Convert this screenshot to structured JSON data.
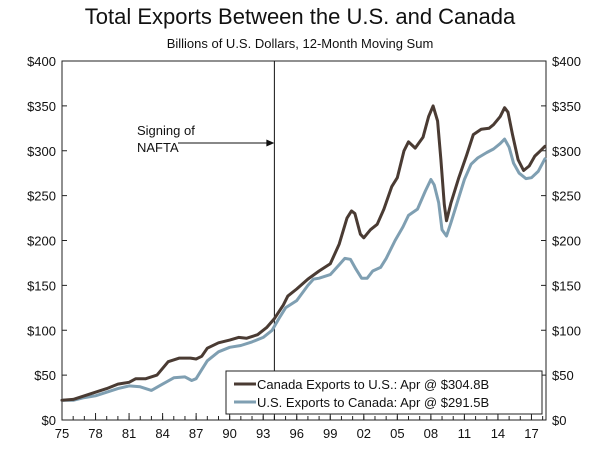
{
  "chart_data": {
    "type": "line",
    "title": "Total Exports Between the U.S. and Canada",
    "subtitle": "Billions of U.S. Dollars, 12-Month Moving Sum",
    "xlabel": "",
    "ylabel": "",
    "xlim": [
      1975,
      2018.3
    ],
    "ylim": [
      0,
      400
    ],
    "x_ticks": [
      1975,
      1978,
      1981,
      1984,
      1987,
      1990,
      1993,
      1996,
      1999,
      2002,
      2005,
      2008,
      2011,
      2014,
      2017
    ],
    "x_tick_labels": [
      "75",
      "78",
      "81",
      "84",
      "87",
      "90",
      "93",
      "96",
      "99",
      "02",
      "05",
      "08",
      "11",
      "14",
      "17"
    ],
    "y_ticks": [
      0,
      50,
      100,
      150,
      200,
      250,
      300,
      350,
      400
    ],
    "y_tick_labels": [
      "$0",
      "$50",
      "$100",
      "$150",
      "$200",
      "$250",
      "$300",
      "$350",
      "$400"
    ],
    "grid": false,
    "legend_position": "bottom-right",
    "annotation": {
      "text_lines": [
        "Signing of",
        "NAFTA"
      ],
      "x": 1994.0
    },
    "series": [
      {
        "name": "Canada Exports to U.S.: Apr @ $304.8B",
        "color": "#4a3b33",
        "points": [
          [
            1975.0,
            22
          ],
          [
            1976.0,
            23
          ],
          [
            1977.0,
            27
          ],
          [
            1978.0,
            31
          ],
          [
            1979.0,
            35
          ],
          [
            1980.0,
            40
          ],
          [
            1981.0,
            42
          ],
          [
            1981.6,
            46
          ],
          [
            1982.5,
            46
          ],
          [
            1983.5,
            50
          ],
          [
            1984.5,
            65
          ],
          [
            1985.5,
            69
          ],
          [
            1986.5,
            69
          ],
          [
            1987.0,
            68
          ],
          [
            1987.5,
            71
          ],
          [
            1988.0,
            80
          ],
          [
            1989.0,
            86
          ],
          [
            1990.0,
            89
          ],
          [
            1990.8,
            92
          ],
          [
            1991.5,
            91
          ],
          [
            1992.5,
            95
          ],
          [
            1993.3,
            103
          ],
          [
            1994.0,
            113
          ],
          [
            1994.8,
            128
          ],
          [
            1995.2,
            138
          ],
          [
            1996.0,
            146
          ],
          [
            1997.0,
            157
          ],
          [
            1998.0,
            166
          ],
          [
            1999.0,
            174
          ],
          [
            1999.8,
            196
          ],
          [
            2000.5,
            225
          ],
          [
            2000.9,
            233
          ],
          [
            2001.2,
            230
          ],
          [
            2001.7,
            207
          ],
          [
            2002.0,
            203
          ],
          [
            2002.6,
            212
          ],
          [
            2003.2,
            218
          ],
          [
            2003.8,
            235
          ],
          [
            2004.5,
            260
          ],
          [
            2005.0,
            270
          ],
          [
            2005.6,
            300
          ],
          [
            2006.0,
            310
          ],
          [
            2006.6,
            303
          ],
          [
            2007.3,
            315
          ],
          [
            2007.8,
            338
          ],
          [
            2008.2,
            350
          ],
          [
            2008.6,
            333
          ],
          [
            2008.9,
            290
          ],
          [
            2009.2,
            240
          ],
          [
            2009.4,
            222
          ],
          [
            2009.8,
            242
          ],
          [
            2010.5,
            270
          ],
          [
            2011.2,
            295
          ],
          [
            2011.8,
            318
          ],
          [
            2012.5,
            324
          ],
          [
            2013.2,
            325
          ],
          [
            2013.6,
            329
          ],
          [
            2014.2,
            338
          ],
          [
            2014.6,
            348
          ],
          [
            2014.9,
            343
          ],
          [
            2015.3,
            318
          ],
          [
            2015.8,
            290
          ],
          [
            2016.3,
            278
          ],
          [
            2016.8,
            283
          ],
          [
            2017.3,
            294
          ],
          [
            2017.8,
            300
          ],
          [
            2018.2,
            305
          ]
        ]
      },
      {
        "name": "U.S. Exports to Canada: Apr @ $291.5B",
        "color": "#7f9fb2",
        "points": [
          [
            1975.0,
            22
          ],
          [
            1976.0,
            22
          ],
          [
            1977.0,
            25
          ],
          [
            1978.0,
            27
          ],
          [
            1979.0,
            31
          ],
          [
            1980.0,
            35
          ],
          [
            1981.0,
            38
          ],
          [
            1982.0,
            37
          ],
          [
            1983.0,
            33
          ],
          [
            1984.0,
            40
          ],
          [
            1985.0,
            47
          ],
          [
            1986.0,
            48
          ],
          [
            1986.6,
            44
          ],
          [
            1987.0,
            46
          ],
          [
            1987.5,
            56
          ],
          [
            1988.0,
            66
          ],
          [
            1989.0,
            76
          ],
          [
            1990.0,
            81
          ],
          [
            1991.0,
            83
          ],
          [
            1992.0,
            87
          ],
          [
            1993.0,
            92
          ],
          [
            1993.8,
            100
          ],
          [
            1994.5,
            115
          ],
          [
            1995.0,
            125
          ],
          [
            1996.0,
            133
          ],
          [
            1997.0,
            150
          ],
          [
            1997.5,
            157
          ],
          [
            1998.0,
            158
          ],
          [
            1999.0,
            162
          ],
          [
            1999.8,
            173
          ],
          [
            2000.3,
            180
          ],
          [
            2000.8,
            179
          ],
          [
            2001.3,
            168
          ],
          [
            2001.8,
            158
          ],
          [
            2002.3,
            158
          ],
          [
            2002.8,
            166
          ],
          [
            2003.5,
            170
          ],
          [
            2004.0,
            180
          ],
          [
            2004.8,
            200
          ],
          [
            2005.5,
            215
          ],
          [
            2006.0,
            228
          ],
          [
            2006.8,
            235
          ],
          [
            2007.5,
            255
          ],
          [
            2008.0,
            268
          ],
          [
            2008.3,
            262
          ],
          [
            2008.7,
            242
          ],
          [
            2009.0,
            212
          ],
          [
            2009.4,
            205
          ],
          [
            2009.8,
            220
          ],
          [
            2010.3,
            240
          ],
          [
            2011.0,
            268
          ],
          [
            2011.6,
            285
          ],
          [
            2012.2,
            292
          ],
          [
            2013.0,
            298
          ],
          [
            2013.6,
            302
          ],
          [
            2014.2,
            308
          ],
          [
            2014.6,
            313
          ],
          [
            2015.0,
            304
          ],
          [
            2015.4,
            286
          ],
          [
            2015.9,
            275
          ],
          [
            2016.5,
            269
          ],
          [
            2017.0,
            270
          ],
          [
            2017.6,
            277
          ],
          [
            2018.2,
            291
          ]
        ]
      }
    ]
  }
}
